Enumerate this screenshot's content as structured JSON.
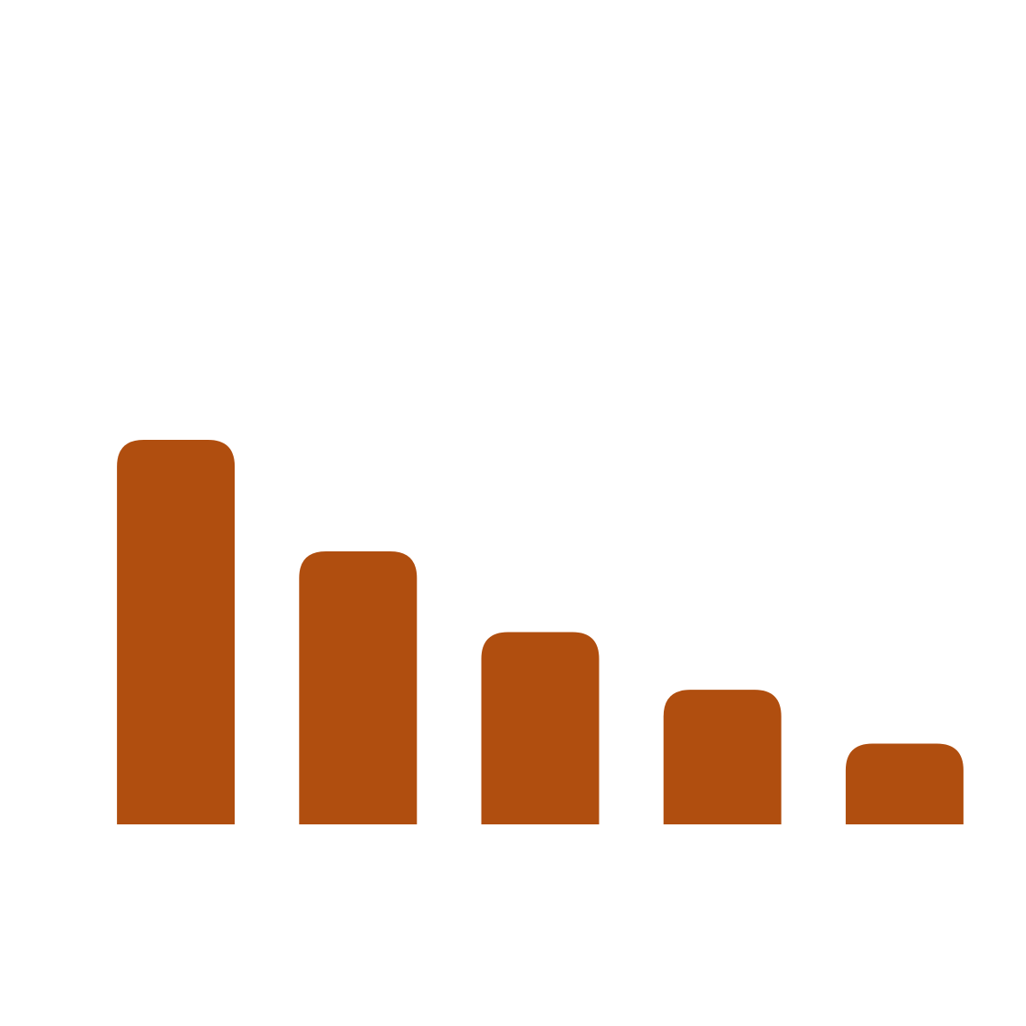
{
  "chart_data": {
    "type": "bar",
    "values": [
      100,
      71,
      50,
      35,
      21
    ],
    "color": "#b04e0f",
    "ylim": [
      0,
      100
    ]
  }
}
